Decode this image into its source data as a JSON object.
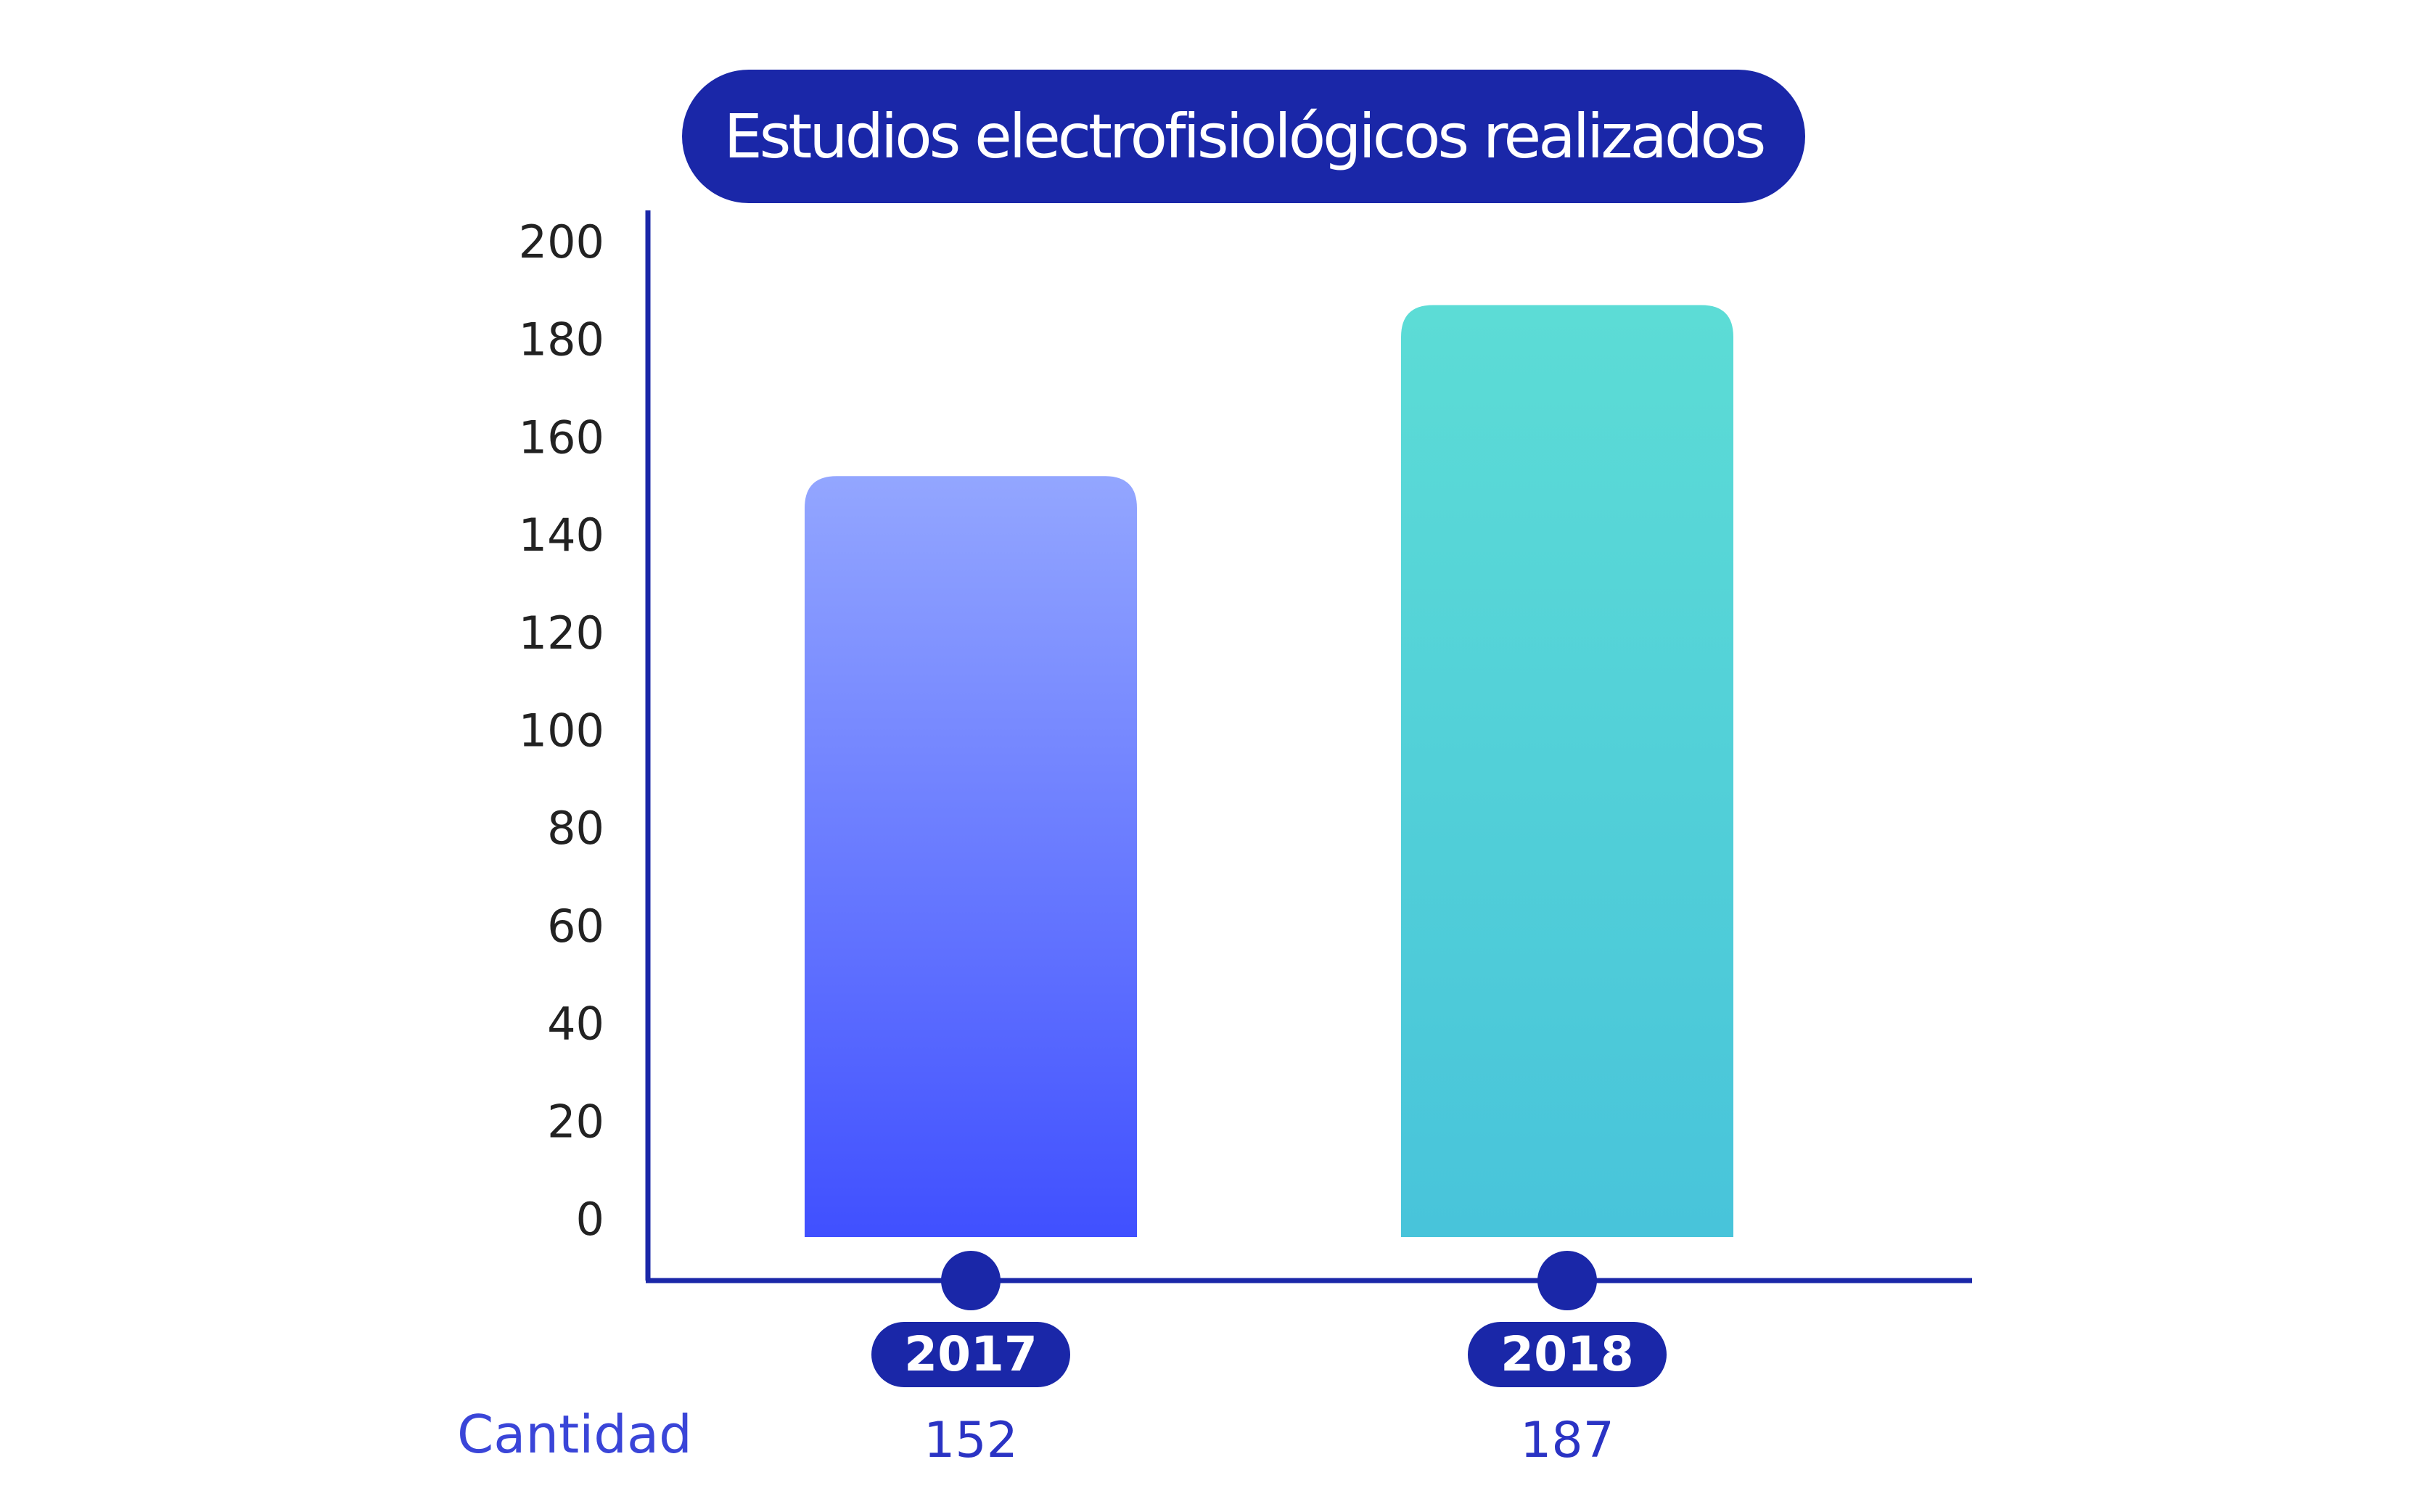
{
  "chart_data": {
    "type": "bar",
    "title": "Estudios electrofisiológicos realizados",
    "categories": [
      "2017",
      "2018"
    ],
    "values": [
      152,
      187
    ],
    "yticks": [
      "0",
      "20",
      "40",
      "60",
      "80",
      "100",
      "120",
      "140",
      "160",
      "180",
      "200"
    ],
    "ylim": [
      0,
      200
    ],
    "row_label": "Cantidad",
    "value_labels": [
      "152",
      "187"
    ],
    "colors": {
      "axis": "#1a27a8",
      "title_pill": "#1a27a8",
      "bar_2017_top": "#93a6ff",
      "bar_2017_bottom": "#4050ff",
      "bar_2018_top": "#5cdcd6",
      "bar_2018_bottom": "#48c4da",
      "label_text": "#2a33c4"
    }
  }
}
